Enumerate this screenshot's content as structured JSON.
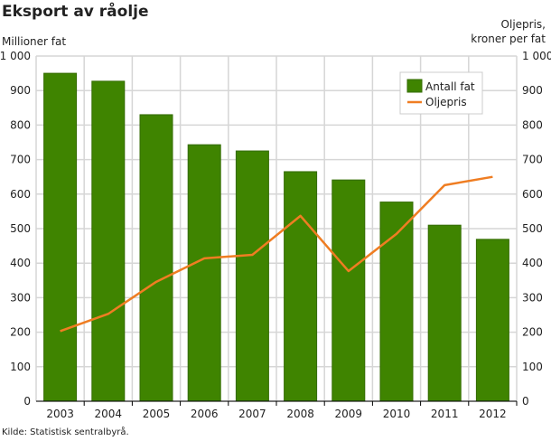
{
  "chart_data": {
    "type": "bar",
    "title": "Eksport av råolje",
    "ylabel": "Millioner fat",
    "ylabel_right": [
      "Oljepris,",
      "kroner per fat"
    ],
    "ylim": [
      0,
      1000
    ],
    "ylim_right": [
      0,
      1000
    ],
    "yticks": [
      "0",
      "100",
      "200",
      "300",
      "400",
      "500",
      "600",
      "700",
      "800",
      "900",
      "1 000"
    ],
    "categories": [
      "2003",
      "2004",
      "2005",
      "2006",
      "2007",
      "2008",
      "2009",
      "2010",
      "2011",
      "2012"
    ],
    "series": [
      {
        "name": "Antall fat",
        "type": "bar",
        "axis": "left",
        "color": "#3f8400",
        "values": [
          950,
          927,
          830,
          743,
          725,
          665,
          641,
          577,
          510,
          469
        ]
      },
      {
        "name": "Oljepris",
        "type": "line",
        "axis": "right",
        "color": "#ef7d22",
        "values": [
          203,
          253,
          346,
          414,
          424,
          537,
          377,
          485,
          626,
          650
        ]
      }
    ],
    "grid": true,
    "legend_position": "top-right",
    "source": "Kilde: Statistisk sentralbyrå."
  }
}
